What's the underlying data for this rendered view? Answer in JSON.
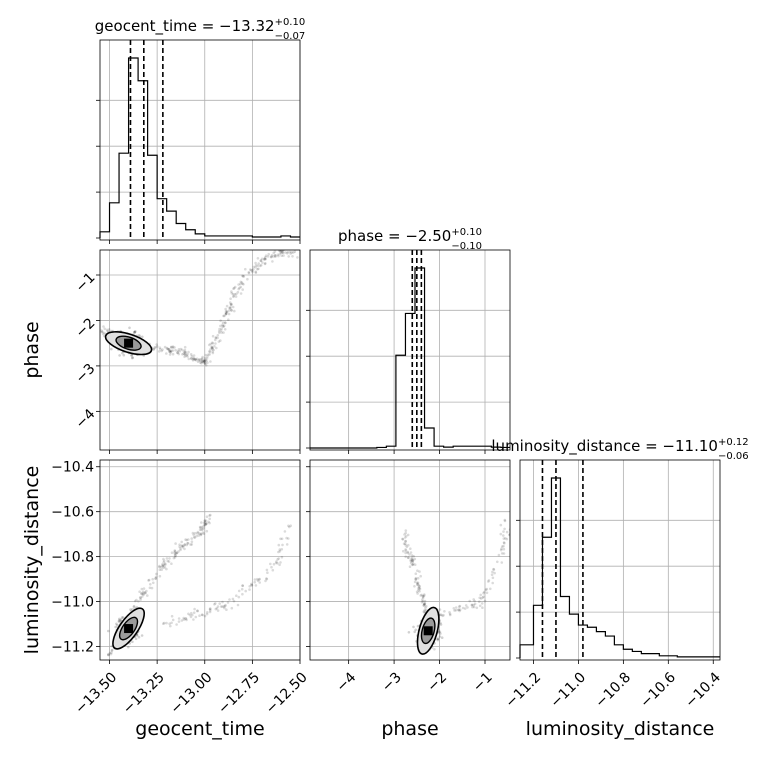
{
  "chart_data": {
    "type": "scatter",
    "subtype": "corner-plot",
    "grid": true,
    "parameters": [
      {
        "name": "geocent_time",
        "label": "geocent_time",
        "median": -13.32,
        "plus": "0.10",
        "minus": "0.07",
        "title_main": "geocent_time = −13.32",
        "title_sup": "+0.10",
        "title_sub": "−0.07",
        "range": [
          -13.55,
          -12.5
        ],
        "ticks": [
          -13.5,
          -13.25,
          -13.0,
          -12.75,
          -12.5
        ],
        "tick_labels": [
          "−13.50",
          "−13.25",
          "−13.00",
          "−12.75",
          "−12.50"
        ],
        "quantiles": [
          -13.39,
          -13.32,
          -13.22
        ]
      },
      {
        "name": "phase",
        "label": "phase",
        "median": -2.5,
        "plus": "0.10",
        "minus": "0.10",
        "title_main": "phase = −2.50",
        "title_sup": "+0.10",
        "title_sub": "−0.10",
        "range": [
          -4.85,
          -0.45
        ],
        "ticks": [
          -4,
          -3,
          -2,
          -1
        ],
        "tick_labels": [
          "−4",
          "−3",
          "−2",
          "−1"
        ],
        "quantiles": [
          -2.6,
          -2.5,
          -2.4
        ]
      },
      {
        "name": "luminosity_distance",
        "label": "luminosity_distance",
        "median": -11.1,
        "plus": "0.12",
        "minus": "0.06",
        "title_main": "luminosity_distance = −11.10",
        "title_sup": "+0.12",
        "title_sub": "−0.06",
        "range": [
          -11.26,
          -10.37
        ],
        "ticks": [
          -11.2,
          -11.0,
          -10.8,
          -10.6,
          -10.4
        ],
        "tick_labels": [
          "−11.2",
          "−11.0",
          "−10.8",
          "−10.6",
          "−10.4"
        ],
        "quantiles": [
          -11.16,
          -11.1,
          -10.98
        ]
      }
    ],
    "histograms": [
      {
        "parameter": "geocent_time",
        "bin_edges": [
          -13.55,
          -13.5,
          -13.45,
          -13.4,
          -13.35,
          -13.3,
          -13.25,
          -13.2,
          -13.15,
          -13.1,
          -13.05,
          -13.0,
          -12.95,
          -12.9,
          -12.85,
          -12.8,
          -12.75,
          -12.7,
          -12.65,
          -12.6,
          -12.55,
          -12.5
        ],
        "counts": [
          0.03,
          0.17,
          0.41,
          0.87,
          0.76,
          0.4,
          0.19,
          0.13,
          0.07,
          0.04,
          0.02,
          0.01,
          0.01,
          0.01,
          0.01,
          0.01,
          0.005,
          0.005,
          0.005,
          0.01,
          0.005
        ]
      },
      {
        "parameter": "phase",
        "bin_edges": [
          -4.85,
          -4.64,
          -4.43,
          -4.22,
          -4.01,
          -3.8,
          -3.59,
          -3.38,
          -3.17,
          -2.96,
          -2.75,
          -2.54,
          -2.33,
          -2.12,
          -1.91,
          -1.7,
          -1.49,
          -1.28,
          -1.07,
          -0.86,
          -0.65,
          -0.45
        ],
        "counts": [
          0,
          0,
          0,
          0,
          0,
          0,
          0,
          0.003,
          0.01,
          0.51,
          0.74,
          0.99,
          0.11,
          0.01,
          0.005,
          0.01,
          0.01,
          0.01,
          0.01,
          0.005,
          0.003
        ]
      },
      {
        "parameter": "luminosity_distance",
        "bin_edges": [
          -11.26,
          -11.2,
          -11.16,
          -11.12,
          -11.08,
          -11.04,
          -11.0,
          -10.96,
          -10.92,
          -10.88,
          -10.84,
          -10.8,
          -10.76,
          -10.72,
          -10.68,
          -10.64,
          -10.6,
          -10.56,
          -10.52,
          -10.48,
          -10.44,
          -10.37
        ],
        "counts": [
          0.06,
          0.24,
          0.55,
          0.82,
          0.28,
          0.2,
          0.15,
          0.14,
          0.12,
          0.1,
          0.06,
          0.04,
          0.03,
          0.02,
          0.02,
          0.01,
          0.01,
          0.005,
          0.005,
          0.005,
          0.005
        ]
      }
    ],
    "scatter_panels": [
      {
        "x": "geocent_time",
        "y": "phase",
        "core": {
          "x": -13.4,
          "y": -2.5
        },
        "trail": [
          [
            -13.55,
            -2.2
          ],
          [
            -13.47,
            -2.35
          ],
          [
            -13.4,
            -2.48
          ],
          [
            -13.3,
            -2.6
          ],
          [
            -13.2,
            -2.65
          ],
          [
            -13.12,
            -2.7
          ],
          [
            -13.05,
            -2.85
          ],
          [
            -13.0,
            -2.9
          ],
          [
            -12.95,
            -2.5
          ],
          [
            -12.9,
            -2.0
          ],
          [
            -12.85,
            -1.5
          ],
          [
            -12.78,
            -1.0
          ],
          [
            -12.7,
            -0.7
          ],
          [
            -12.6,
            -0.5
          ],
          [
            -12.52,
            -0.5
          ]
        ]
      },
      {
        "x": "geocent_time",
        "y": "luminosity_distance",
        "core": {
          "x": -13.4,
          "y": -11.12
        },
        "trail": [
          [
            -13.5,
            -11.24
          ],
          [
            -13.42,
            -11.13
          ],
          [
            -13.35,
            -11.0
          ],
          [
            -13.28,
            -10.9
          ],
          [
            -13.18,
            -10.8
          ],
          [
            -13.1,
            -10.74
          ],
          [
            -13.02,
            -10.69
          ],
          [
            -12.98,
            -10.62
          ]
        ],
        "trail2": [
          [
            -13.22,
            -11.1
          ],
          [
            -13.1,
            -11.07
          ],
          [
            -13.0,
            -11.04
          ],
          [
            -12.9,
            -11.02
          ],
          [
            -12.8,
            -10.95
          ],
          [
            -12.7,
            -10.9
          ],
          [
            -12.6,
            -10.8
          ],
          [
            -12.55,
            -10.65
          ]
        ]
      },
      {
        "x": "phase",
        "y": "luminosity_distance",
        "core": {
          "x": -2.25,
          "y": -11.13
        },
        "trail": [
          [
            -2.8,
            -10.68
          ],
          [
            -2.65,
            -10.8
          ],
          [
            -2.5,
            -10.9
          ],
          [
            -2.35,
            -11.0
          ],
          [
            -2.25,
            -11.13
          ],
          [
            -2.2,
            -11.22
          ]
        ],
        "trail2": [
          [
            -2.3,
            -11.05
          ],
          [
            -1.9,
            -11.05
          ],
          [
            -1.5,
            -11.03
          ],
          [
            -1.1,
            -11.0
          ],
          [
            -0.8,
            -10.9
          ],
          [
            -0.6,
            -10.75
          ],
          [
            -0.5,
            -10.6
          ]
        ]
      }
    ]
  }
}
